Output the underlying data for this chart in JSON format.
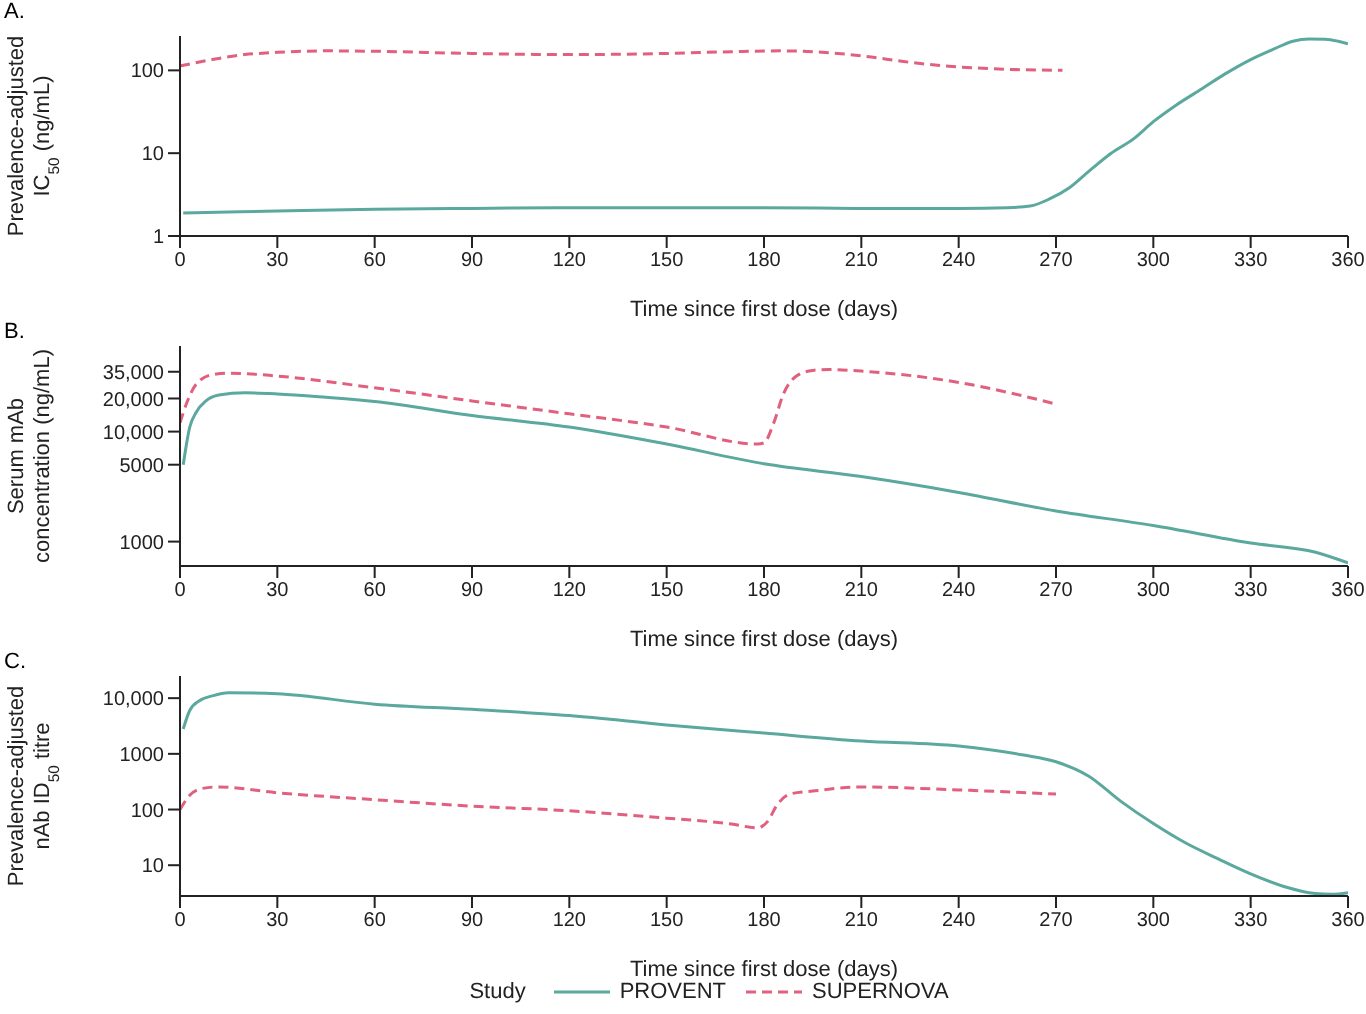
{
  "chart_data": [
    {
      "type": "line",
      "title": "A.",
      "xlabel": "Time since first dose (days)",
      "ylabel": "Prevalence-adjusted IC$_{50}$ (ng/mL)",
      "log": "y",
      "xlim": [
        0,
        360
      ],
      "xticks": [
        0,
        30,
        60,
        90,
        120,
        150,
        180,
        210,
        240,
        270,
        300,
        330,
        360
      ],
      "ylim": [
        1,
        260
      ],
      "yticks": [
        1,
        10,
        100
      ],
      "series": [
        {
          "color": "#5ba89f",
          "line_style": "solid",
          "x": [
            1,
            30,
            60,
            90,
            120,
            150,
            180,
            210,
            240,
            255,
            262,
            268,
            274,
            280,
            287,
            294,
            300,
            307,
            315,
            322,
            330,
            337,
            343,
            348,
            353,
            357,
            360
          ],
          "values": [
            1.9,
            2.0,
            2.1,
            2.15,
            2.2,
            2.2,
            2.2,
            2.15,
            2.15,
            2.2,
            2.3,
            2.8,
            3.8,
            6,
            10,
            15,
            24,
            38,
            60,
            90,
            135,
            180,
            225,
            240,
            238,
            225,
            210
          ]
        },
        {
          "color": "#e0607e",
          "line_style": "dashed",
          "x": [
            0,
            10,
            20,
            30,
            45,
            60,
            90,
            120,
            150,
            170,
            185,
            195,
            210,
            225,
            240,
            255,
            272
          ],
          "values": [
            113,
            135,
            155,
            165,
            172,
            170,
            160,
            155,
            160,
            168,
            172,
            168,
            150,
            125,
            110,
            103,
            100
          ]
        }
      ]
    },
    {
      "type": "line",
      "title": "B.",
      "xlabel": "Time since first dose (days)",
      "ylabel": "Serum mAb concentration (ng/mL)",
      "log": "y",
      "xlim": [
        0,
        360
      ],
      "xticks": [
        0,
        30,
        60,
        90,
        120,
        150,
        180,
        210,
        240,
        270,
        300,
        330,
        360
      ],
      "ylim": [
        600,
        60000
      ],
      "yticks": [
        1000,
        5000,
        {
          "value": 10000,
          "label": "10,000"
        },
        {
          "value": 20000,
          "label": "20,000"
        },
        {
          "value": 35000,
          "label": "35,000"
        }
      ],
      "series": [
        {
          "color": "#5ba89f",
          "line_style": "solid",
          "x": [
            1,
            3,
            5,
            8,
            12,
            20,
            30,
            45,
            60,
            90,
            120,
            150,
            180,
            210,
            240,
            270,
            300,
            330,
            350,
            360
          ],
          "values": [
            5000,
            11000,
            15000,
            19000,
            21500,
            22500,
            22000,
            20500,
            18800,
            14000,
            11000,
            7700,
            5100,
            3900,
            2800,
            1900,
            1400,
            970,
            800,
            640
          ]
        },
        {
          "color": "#e0607e",
          "line_style": "dashed",
          "x": [
            0,
            2,
            5,
            10,
            15,
            30,
            60,
            90,
            120,
            150,
            178,
            180,
            183,
            186,
            190,
            195,
            200,
            210,
            240,
            270
          ],
          "values": [
            12000,
            18000,
            27000,
            33000,
            34000,
            32000,
            25000,
            19000,
            14500,
            11000,
            7700,
            7900,
            12000,
            22000,
            32000,
            36000,
            36700,
            35500,
            28000,
            17800
          ]
        }
      ]
    },
    {
      "type": "line",
      "title": "C.",
      "xlabel": "Time since first dose (days)",
      "ylabel": "Prevalence-adjusted nAb ID$_{50}$ titre",
      "log": "y",
      "xlim": [
        0,
        360
      ],
      "xticks": [
        0,
        30,
        60,
        90,
        120,
        150,
        180,
        210,
        240,
        270,
        300,
        330,
        360
      ],
      "ylim": [
        2.8,
        25000
      ],
      "yticks": [
        10,
        100,
        1000,
        {
          "value": 10000,
          "label": "10,000"
        }
      ],
      "legend": "bottom",
      "legend_title": "Study",
      "series": [
        {
          "name": "PROVENT",
          "color": "#5ba89f",
          "line_style": "solid",
          "x": [
            1,
            3,
            6,
            10,
            15,
            30,
            60,
            90,
            120,
            150,
            180,
            210,
            240,
            260,
            270,
            280,
            290,
            300,
            310,
            320,
            330,
            340,
            350,
            355,
            360
          ],
          "values": [
            2800,
            6000,
            9000,
            11000,
            12500,
            12000,
            7800,
            6300,
            4870,
            3300,
            2360,
            1700,
            1380,
            950,
            720,
            400,
            140,
            56,
            25,
            13,
            7,
            4.2,
            3.1,
            3.0,
            3.2
          ]
        },
        {
          "name": "SUPERNOVA",
          "color": "#e0607e",
          "line_style": "dashed",
          "x": [
            0,
            3,
            7,
            12,
            30,
            60,
            90,
            120,
            150,
            170,
            178,
            181,
            184,
            188,
            195,
            210,
            240,
            270
          ],
          "values": [
            100,
            180,
            240,
            255,
            200,
            150,
            115,
            95,
            70,
            55,
            47,
            60,
            120,
            190,
            215,
            254,
            225,
            190
          ]
        }
      ]
    }
  ]
}
